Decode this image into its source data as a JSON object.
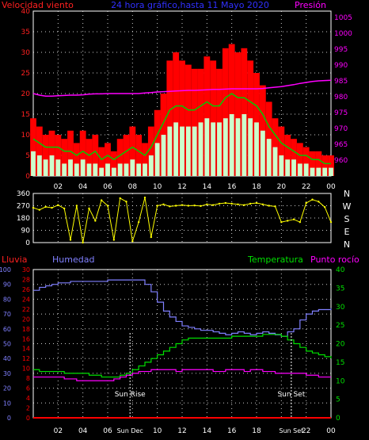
{
  "header": {
    "left_label": "Velocidad viento",
    "title": "24 hora gráfico,hasta 11 Mayo 2020",
    "right_label": "Presión"
  },
  "colors": {
    "wind_axis": "#ff2020",
    "pressure_axis": "#ff00ff",
    "title": "#3030ff",
    "wind_gust": "#ff0000",
    "wind_avg": "#00cc00",
    "wind_min": "#ccffcc",
    "pressure_line": "#ff00ff",
    "direction_line": "#ffff00",
    "rain": "#ff0000",
    "humidity": "#8080ff",
    "temperature": "#00e000",
    "dewpoint": "#ff00ff",
    "grid": "#ffffff",
    "frame": "#ffffff"
  },
  "chart_data": [
    {
      "type": "line",
      "name": "wind-pressure",
      "x_ticks": [
        "02",
        "04",
        "06",
        "08",
        "10",
        "12",
        "14",
        "16",
        "18",
        "20",
        "22",
        "00"
      ],
      "y_left": {
        "label": "Velocidad viento",
        "range": [
          0,
          40
        ],
        "ticks": [
          "0",
          "5",
          "10",
          "15",
          "20",
          "25",
          "30",
          "35",
          "40"
        ]
      },
      "y_right": {
        "label": "Presión",
        "range": [
          955,
          1007
        ],
        "ticks": [
          "960",
          "965",
          "970",
          "975",
          "980",
          "985",
          "990",
          "995",
          "1000",
          "1005"
        ]
      },
      "hours": [
        0,
        0.5,
        1,
        1.5,
        2,
        2.5,
        3,
        3.5,
        4,
        4.5,
        5,
        5.5,
        6,
        6.5,
        7,
        7.5,
        8,
        8.5,
        9,
        9.5,
        10,
        10.5,
        11,
        11.5,
        12,
        12.5,
        13,
        13.5,
        14,
        14.5,
        15,
        15.5,
        16,
        16.5,
        17,
        17.5,
        18,
        18.5,
        19,
        19.5,
        20,
        20.5,
        21,
        21.5,
        22,
        22.5,
        23,
        23.5,
        24
      ],
      "series": [
        {
          "name": "Ráfaga",
          "values": [
            14,
            12,
            10,
            11,
            10,
            9,
            11,
            8,
            11,
            9,
            10,
            7,
            8,
            6,
            9,
            10,
            12,
            10,
            8,
            12,
            16,
            20,
            28,
            30,
            28,
            27,
            26,
            26,
            29,
            28,
            26,
            31,
            32,
            30,
            31,
            28,
            25,
            22,
            18,
            14,
            12,
            10,
            9,
            8,
            7,
            6,
            6,
            5,
            5
          ]
        },
        {
          "name": "Media",
          "values": [
            9,
            8,
            7,
            7,
            7,
            6,
            6,
            5,
            6,
            5,
            6,
            4,
            5,
            4,
            5,
            6,
            7,
            6,
            5,
            7,
            10,
            13,
            16,
            17,
            17,
            16,
            16,
            17,
            18,
            17,
            17,
            19,
            20,
            19,
            19,
            18,
            17,
            15,
            12,
            10,
            8,
            7,
            6,
            5,
            5,
            4,
            4,
            3,
            3
          ]
        },
        {
          "name": "Mínima",
          "values": [
            6,
            5,
            4,
            5,
            4,
            3,
            4,
            3,
            4,
            3,
            3,
            2,
            3,
            2,
            3,
            3,
            4,
            3,
            3,
            5,
            8,
            10,
            12,
            13,
            12,
            12,
            12,
            13,
            14,
            13,
            13,
            14,
            15,
            14,
            15,
            14,
            13,
            11,
            9,
            7,
            5,
            4,
            4,
            3,
            3,
            2,
            2,
            2,
            2
          ]
        },
        {
          "name": "Presión",
          "values": [
            981,
            980.5,
            980.2,
            980.2,
            980.3,
            980.4,
            980.5,
            980.5,
            980.6,
            980.8,
            980.9,
            980.9,
            981,
            981,
            981,
            981,
            981,
            981,
            981.2,
            981.3,
            981.5,
            981.6,
            981.7,
            981.8,
            981.9,
            982,
            982,
            982.1,
            982.2,
            982.3,
            982.3,
            982.4,
            982.5,
            982.5,
            982.5,
            982.5,
            982.5,
            982.6,
            982.8,
            983,
            983.2,
            983.5,
            983.8,
            984.2,
            984.5,
            984.8,
            985,
            985.1,
            985.2
          ]
        }
      ]
    },
    {
      "type": "scatter",
      "name": "wind-direction",
      "x_ticks": [
        "02",
        "04",
        "06",
        "08",
        "10",
        "12",
        "14",
        "16",
        "18",
        "20",
        "22",
        "00"
      ],
      "y_left": {
        "range": [
          0,
          360
        ],
        "ticks": [
          "0",
          "90",
          "180",
          "270",
          "360"
        ]
      },
      "y_right": {
        "labels": [
          "N",
          "W",
          "S",
          "E",
          "N"
        ]
      },
      "hours": [
        0,
        0.5,
        1,
        1.5,
        2,
        2.5,
        3,
        3.5,
        4,
        4.5,
        5,
        5.5,
        6,
        6.5,
        7,
        7.5,
        8,
        8.5,
        9,
        9.5,
        10,
        10.5,
        11,
        11.5,
        12,
        12.5,
        13,
        13.5,
        14,
        14.5,
        15,
        15.5,
        16,
        16.5,
        17,
        17.5,
        18,
        18.5,
        19,
        19.5,
        20,
        20.5,
        21,
        21.5,
        22,
        22.5,
        23,
        23.5,
        24
      ],
      "values": [
        255,
        240,
        262,
        255,
        275,
        250,
        20,
        270,
        0,
        250,
        160,
        310,
        270,
        20,
        325,
        300,
        10,
        150,
        330,
        40,
        270,
        280,
        265,
        270,
        275,
        270,
        272,
        268,
        280,
        275,
        285,
        290,
        285,
        280,
        275,
        285,
        290,
        280,
        270,
        265,
        150,
        160,
        170,
        150,
        290,
        315,
        300,
        260,
        150
      ]
    },
    {
      "type": "line",
      "name": "humidity-temperature",
      "header": {
        "lluvia": "Lluvia",
        "humedad": "Humedad",
        "temperatura": "Temperatura",
        "punto_rocio": "Punto rocío"
      },
      "x_ticks": [
        "02",
        "04",
        "06",
        "08",
        "10",
        "12",
        "14",
        "16",
        "18",
        "20",
        "22",
        "00"
      ],
      "y_humidity": {
        "label": "Humedad",
        "range": [
          0,
          100
        ],
        "ticks": [
          "0",
          "10",
          "20",
          "30",
          "40",
          "50",
          "60",
          "70",
          "80",
          "90",
          "100"
        ]
      },
      "y_rain": {
        "label": "Lluvia",
        "range": [
          0,
          30
        ],
        "ticks": [
          "0",
          "2",
          "4",
          "6",
          "8",
          "10",
          "12",
          "14",
          "16",
          "18",
          "20",
          "22",
          "24",
          "26",
          "28",
          "30"
        ]
      },
      "y_temp": {
        "label": "Temperatura",
        "range": [
          0,
          40
        ],
        "ticks": [
          "0",
          "5",
          "10",
          "15",
          "20",
          "25",
          "30",
          "35",
          "40"
        ]
      },
      "hours": [
        0,
        0.5,
        1,
        1.5,
        2,
        2.5,
        3,
        3.5,
        4,
        4.5,
        5,
        5.5,
        6,
        6.5,
        7,
        7.5,
        8,
        8.5,
        9,
        9.5,
        10,
        10.5,
        11,
        11.5,
        12,
        12.5,
        13,
        13.5,
        14,
        14.5,
        15,
        15.5,
        16,
        16.5,
        17,
        17.5,
        18,
        18.5,
        19,
        19.5,
        20,
        20.5,
        21,
        21.5,
        22,
        22.5,
        23,
        23.5,
        24
      ],
      "series": [
        {
          "name": "Humedad",
          "values": [
            86,
            88,
            89,
            90,
            91,
            91,
            92,
            92,
            92,
            92,
            92,
            92,
            93,
            93,
            93,
            93,
            93,
            93,
            90,
            85,
            78,
            72,
            68,
            65,
            62,
            61,
            60,
            59,
            59,
            58,
            57,
            56,
            57,
            58,
            57,
            56,
            57,
            58,
            57,
            56,
            55,
            58,
            60,
            66,
            70,
            72,
            73,
            73,
            74
          ]
        },
        {
          "name": "Temperatura",
          "values": [
            13,
            12.5,
            12.5,
            12.5,
            12.5,
            12,
            12,
            12,
            12,
            11.5,
            11.5,
            11,
            11,
            11,
            11.5,
            12,
            13,
            14,
            15,
            16,
            17,
            18,
            19,
            20,
            21,
            21.5,
            21.5,
            21.5,
            21.5,
            21.5,
            21.5,
            21.5,
            22,
            22,
            22,
            22,
            22,
            22.5,
            22.5,
            22.5,
            22,
            21,
            20,
            19,
            18,
            17.5,
            17,
            16.5,
            16
          ]
        },
        {
          "name": "Punto rocío",
          "values": [
            11,
            11,
            11,
            11,
            11,
            10.5,
            10.5,
            10,
            10,
            10,
            10,
            10,
            10,
            10.5,
            11,
            11.5,
            12,
            12.5,
            12.5,
            13,
            13,
            13,
            13,
            12.5,
            13,
            13,
            13,
            13,
            13,
            12.5,
            12.5,
            13,
            13,
            13,
            12.5,
            13,
            13,
            12.5,
            12.5,
            12,
            12,
            12,
            12,
            12,
            11.5,
            11.5,
            11,
            11,
            11
          ]
        },
        {
          "name": "Lluvia",
          "values": [
            0,
            0,
            0,
            0,
            0,
            0,
            0,
            0,
            0,
            0,
            0,
            0,
            0,
            0,
            0,
            0,
            0,
            0,
            0,
            0,
            0,
            0,
            0,
            0,
            0,
            0,
            0,
            0,
            0,
            0,
            0,
            0,
            0,
            0,
            0,
            0,
            0,
            0,
            0,
            0,
            0,
            0,
            0,
            0,
            0,
            0,
            0,
            0,
            0
          ]
        }
      ],
      "annotations": [
        {
          "text": "Sun Rise",
          "hour": 7.8
        },
        {
          "text": "Sun Set",
          "hour": 20.8
        },
        {
          "text": "Sun Dec",
          "hour": 7.8
        },
        {
          "text": "Sun Set",
          "hour": 20.8
        }
      ]
    }
  ]
}
